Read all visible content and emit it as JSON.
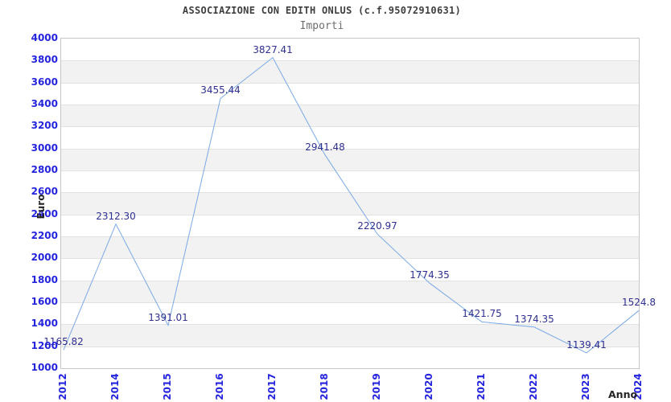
{
  "chart_data": {
    "type": "line",
    "title": "ASSOCIAZIONE CON EDITH ONLUS (c.f.95072910631)",
    "subtitle": "Importi",
    "xlabel": "Anno",
    "ylabel": "Euro",
    "categories": [
      "2012",
      "2014",
      "2015",
      "2016",
      "2017",
      "2018",
      "2019",
      "2020",
      "2021",
      "2022",
      "2023",
      "2024"
    ],
    "values": [
      1165.82,
      2312.3,
      1391.01,
      3455.44,
      3827.41,
      2941.48,
      2220.97,
      1774.35,
      1421.75,
      1374.35,
      1139.41,
      1524.8
    ],
    "point_labels": [
      "1165.82",
      "2312.30",
      "1391.01",
      "3455.44",
      "3827.41",
      "2941.48",
      "2220.97",
      "1774.35",
      "1421.75",
      "1374.35",
      "1139.41",
      "1524.8"
    ],
    "ylim": [
      1000,
      4000
    ],
    "ytick_step": 200,
    "grid": "horizontal-bands",
    "legend": "none",
    "colors": {
      "line": "#7aa9e6",
      "tick_label": "#2424dd",
      "point_label": "#2f2f8f",
      "band_alt": "#f2f2f2",
      "gridline": "#e2e2e2",
      "plot_border": "#c6c6c6",
      "title": "#3f3f3f",
      "subtitle": "#6e6e6e",
      "axis_title": "#262626"
    }
  }
}
